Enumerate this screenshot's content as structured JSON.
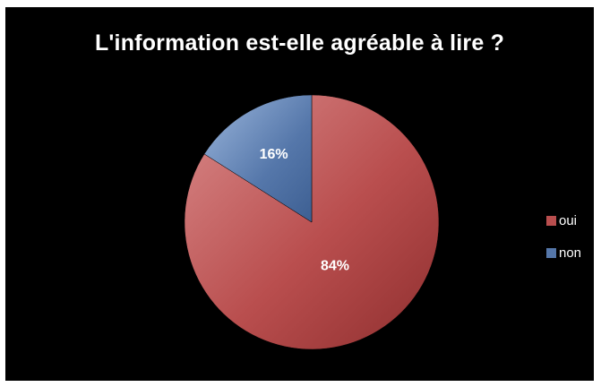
{
  "chart_data": {
    "type": "pie",
    "title": "L'information est-elle agréable à lire ?",
    "categories": [
      "oui",
      "non"
    ],
    "values": [
      84,
      16
    ],
    "data_labels": [
      "84%",
      "16%"
    ],
    "colors": [
      "#b94e4e",
      "#5577aa"
    ],
    "legend_position": "right"
  }
}
